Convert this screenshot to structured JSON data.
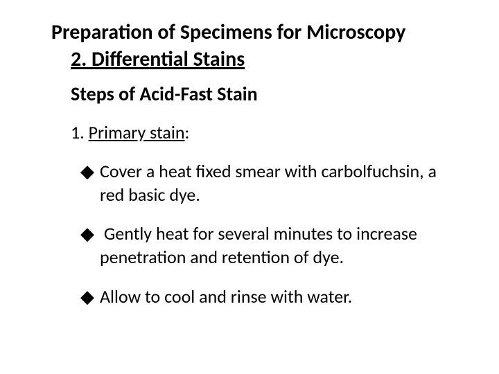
{
  "title": "Preparation of Specimens for Microscopy",
  "subtitle": "2. Differential Stains",
  "heading": "Steps of Acid-Fast Stain",
  "step": {
    "label": "1. ",
    "underlined": "Primary stain",
    "after": ":"
  },
  "bullets": [
    "Cover a heat fixed smear with carbolfuchsin, a red basic dye.",
    " Gently heat for several minutes to increase penetration and retention of dye.",
    "Allow to cool and rinse with water."
  ],
  "bullet_marker": "◆",
  "colors": {
    "text": "#000000",
    "background": "#ffffff"
  },
  "fontsizes": {
    "title": 30,
    "subtitle": 30,
    "heading": 28,
    "step": 26,
    "bullet": 26
  }
}
